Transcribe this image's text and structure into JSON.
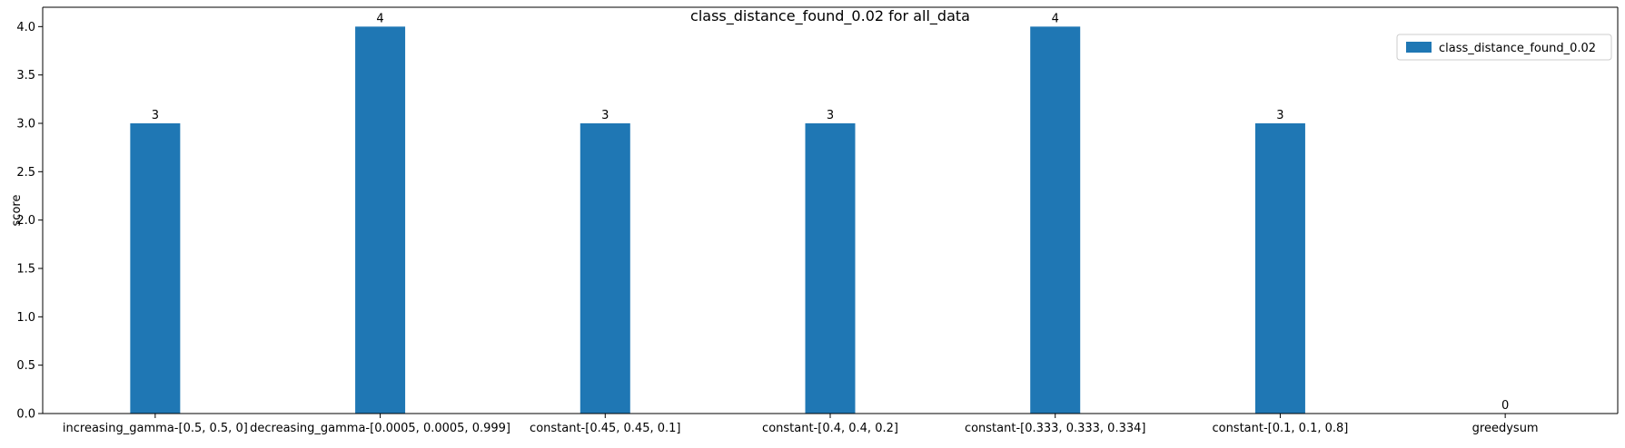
{
  "chart_data": {
    "type": "bar",
    "title": "class_distance_found_0.02 for all_data",
    "xlabel": "",
    "ylabel": "score",
    "categories": [
      "increasing_gamma-[0.5, 0.5, 0]",
      "decreasing_gamma-[0.0005, 0.0005, 0.999]",
      "constant-[0.45, 0.45, 0.1]",
      "constant-[0.4, 0.4, 0.2]",
      "constant-[0.333, 0.333, 0.334]",
      "constant-[0.1, 0.1, 0.8]",
      "greedysum"
    ],
    "series": [
      {
        "name": "class_distance_found_0.02",
        "values": [
          3,
          4,
          3,
          3,
          4,
          3,
          0
        ],
        "color": "#1f77b4"
      }
    ],
    "data_labels": [
      "3",
      "4",
      "3",
      "3",
      "4",
      "3",
      "0"
    ],
    "ylim": [
      0,
      4.2
    ],
    "yticks": [
      0.0,
      0.5,
      1.0,
      1.5,
      2.0,
      2.5,
      3.0,
      3.5,
      4.0
    ],
    "ytick_labels": [
      "0.0",
      "0.5",
      "1.0",
      "1.5",
      "2.0",
      "2.5",
      "3.0",
      "3.5",
      "4.0"
    ],
    "grid": false,
    "legend_position": "top-right"
  }
}
